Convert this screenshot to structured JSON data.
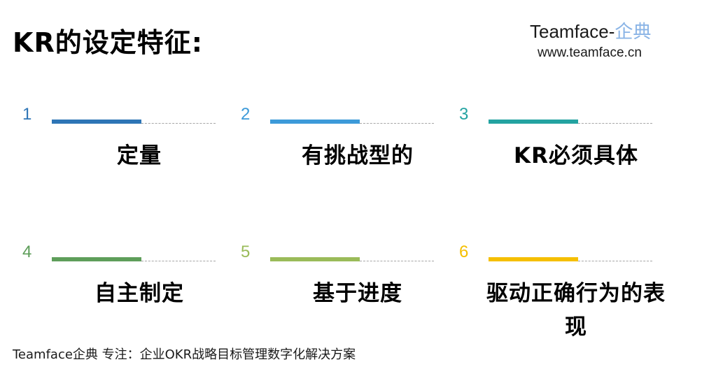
{
  "title": "KR的设定特征:",
  "brand": {
    "name": "Teamface-",
    "name_cn": "企典",
    "url": "www.teamface.cn"
  },
  "items": [
    {
      "number": "1",
      "label": "定量",
      "color": "#2E75B6"
    },
    {
      "number": "2",
      "label": "有挑战型的",
      "color": "#3C9AD9"
    },
    {
      "number": "3",
      "label": "KR必须具体",
      "color": "#23A3A1"
    },
    {
      "number": "4",
      "label": "自主制定",
      "color": "#5E9E5A"
    },
    {
      "number": "5",
      "label": "基于进度",
      "color": "#9ABB59"
    },
    {
      "number": "6",
      "label": "驱动正确行为的表现",
      "color": "#F5BF00"
    }
  ],
  "footer": "Teamface企典 专注：企业OKR战略目标管理数字化解决方案"
}
